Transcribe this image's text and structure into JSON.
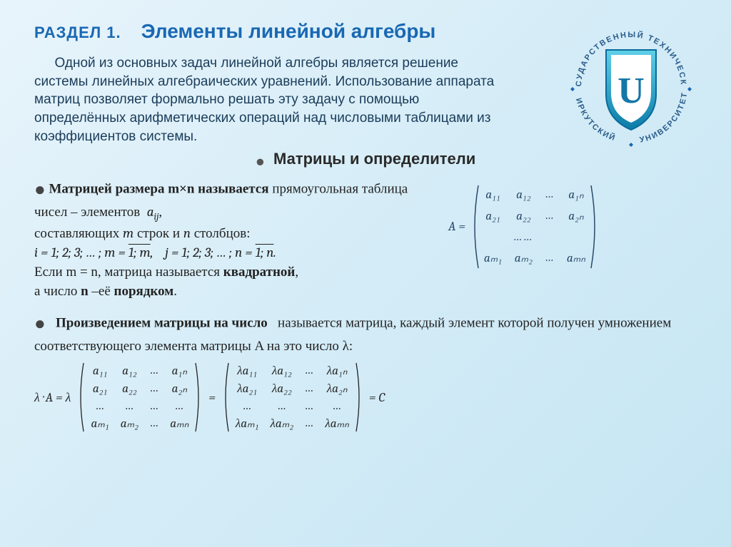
{
  "header": {
    "section_label": "РАЗДЕЛ 1.",
    "title": "Элементы линейной  алгебры"
  },
  "intro": "Одной из основных задач линейной алгебры является решение системы линейных алгебраических уравнений. Использование аппарата матриц  позволяет  формально решать эту задачу с помощью  определённых арифметических операций над числовыми таблицами из коэффициентов системы.",
  "subheading": "Матрицы и определители",
  "def": {
    "lead_b": "Матрицей размера  m×n  называется",
    "tail1": "прямоугольная таблица чисел – элементов",
    "aij": "a",
    "aij_sub": "ij",
    "tail2": ",",
    "line2a": "составляющих",
    "m": "m",
    "line2b": "строк и",
    "n": "n",
    "line2c": "столбцов:",
    "idx_line": "i = 1; 2; 3; … ; m = 1; m,    j = 1; 2; 3; … ; n = 1; n.",
    "sq1": "Если m = n, матрица называется",
    "sq_b": "квадратной",
    "sq2": ",",
    "ord1": "а число",
    "ord_b": "n",
    "ord2": "–её",
    "ord_b2": "порядком",
    "ord3": "."
  },
  "matrixA": {
    "label": "A =",
    "rows": [
      [
        "a₁₁",
        "a₁₂",
        "…",
        "a₁ₙ"
      ],
      [
        "a₂₁",
        "a₂₂",
        "…",
        "a₂ₙ"
      ],
      [
        "",
        "……",
        "",
        ""
      ],
      [
        "aₘ₁",
        "aₘ₂",
        "…",
        "aₘₙ"
      ]
    ]
  },
  "scalar": {
    "lead_b": "Произведением матрицы  на число",
    "text": "называется матрица, каждый элемент которой получен умножением соответствующего  элемента матрицы A на это число λ:"
  },
  "eq": {
    "lhs": "λ · A = λ",
    "eq1": "=",
    "eq2": "= C",
    "m1": [
      [
        "a₁₁",
        "a₁₂",
        "…",
        "a₁ₙ"
      ],
      [
        "a₂₁",
        "a₂₂",
        "…",
        "a₂ₙ"
      ],
      [
        "…",
        "…",
        "…",
        "…"
      ],
      [
        "aₘ₁",
        "aₘ₂",
        "…",
        "aₘₙ"
      ]
    ],
    "m2": [
      [
        "λa₁₁",
        "λa₁₂",
        "…",
        "λa₁ₙ"
      ],
      [
        "λa₂₁",
        "λa₂₂",
        "…",
        "λa₂ₙ"
      ],
      [
        "…",
        "…",
        "…",
        "…"
      ],
      [
        "λaₘ₁",
        "λaₘ₂",
        "…",
        "λaₘₙ"
      ]
    ]
  },
  "logo": {
    "text_top": "ГОСУДАРСТВЕННЫЙ ТЕХНИЧЕСКИЙ",
    "text_bottom_l": "ИРКУТСКИЙ",
    "text_bottom_r": "УНИВЕРСИТЕТ",
    "letter": "U"
  },
  "colors": {
    "title": "#1968b3",
    "body": "#1a3c5a",
    "shield1": "#2fb4d8",
    "shield2": "#0a6b9a"
  }
}
